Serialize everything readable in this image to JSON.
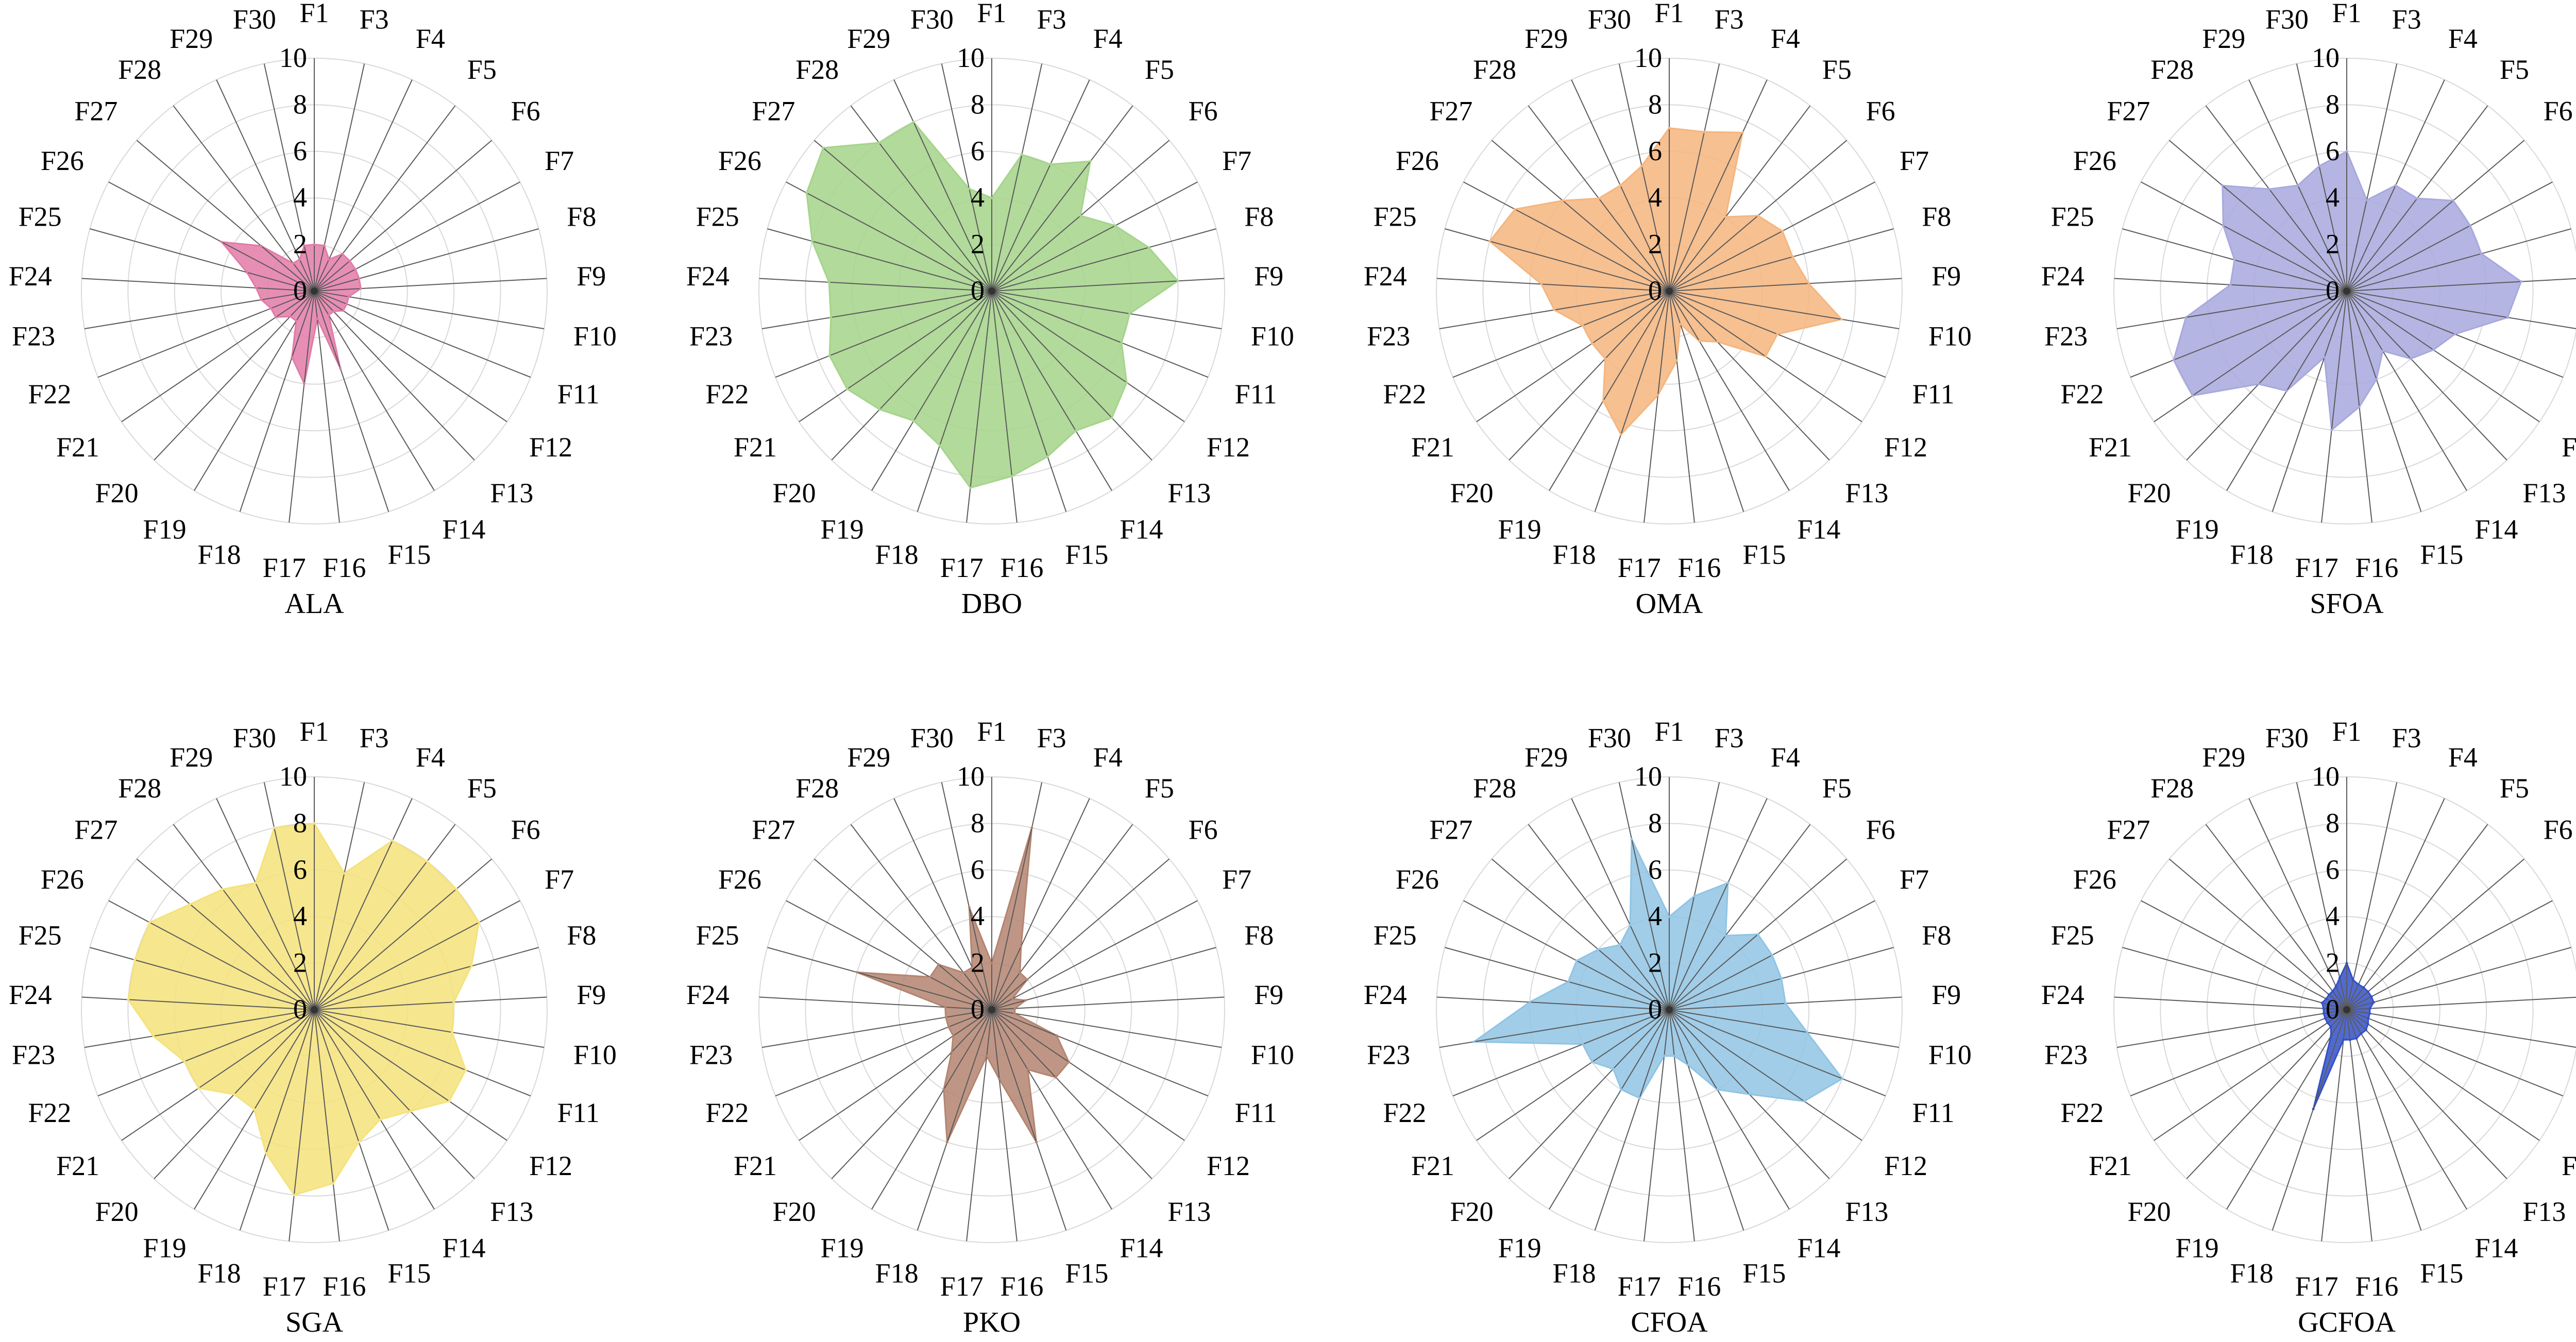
{
  "chart_data": {
    "type": "radar",
    "categories": [
      "F1",
      "F3",
      "F4",
      "F5",
      "F6",
      "F7",
      "F8",
      "F9",
      "F10",
      "F11",
      "F12",
      "F13",
      "F14",
      "F15",
      "F16",
      "F17",
      "F18",
      "F19",
      "F20",
      "F21",
      "F22",
      "F23",
      "F24",
      "F25",
      "F26",
      "F27",
      "F28",
      "F29",
      "F30"
    ],
    "radial_ticks": [
      "0",
      "2",
      "4",
      "6",
      "8",
      "10"
    ],
    "rlim": [
      0,
      10
    ],
    "grid": true,
    "charts": [
      {
        "title": "ALA",
        "color": "#e37aa8",
        "values": [
          2,
          2,
          1.5,
          2,
          2,
          2,
          2,
          2,
          1.5,
          1.5,
          1.5,
          1.2,
          1.2,
          3.5,
          1.2,
          4,
          3,
          1.5,
          1.5,
          2,
          2,
          2.3,
          2.5,
          3,
          4.5,
          3,
          1.5,
          1.5,
          2
        ]
      },
      {
        "title": "DBO",
        "color": "#a5d48a",
        "values": [
          4,
          6,
          6,
          7,
          5,
          6,
          7,
          8,
          6,
          6,
          7,
          7.5,
          7,
          7.5,
          8,
          8.5,
          7,
          6.5,
          7,
          7.5,
          7.5,
          7,
          7,
          8,
          9,
          9.5,
          8,
          8,
          4.5
        ]
      },
      {
        "title": "OMA",
        "color": "#f5b57e",
        "values": [
          7,
          7,
          7.5,
          4,
          5,
          5.5,
          5.5,
          6,
          7.5,
          5,
          5,
          3,
          2.5,
          1.5,
          3,
          4.5,
          6.5,
          5.5,
          4,
          4,
          4,
          5,
          5.5,
          8,
          7.5,
          6,
          5,
          5,
          5.5
        ]
      },
      {
        "title": "SFOA",
        "color": "#a8a8de",
        "values": [
          6,
          4,
          5,
          5,
          6,
          6,
          6,
          7.5,
          7,
          5,
          4.5,
          4,
          3,
          4,
          5,
          6,
          3,
          5,
          5.5,
          8,
          8,
          7,
          5,
          5,
          6,
          7,
          5.5,
          5,
          5.5
        ]
      },
      {
        "title": "SGA",
        "color": "#f5e27a",
        "values": [
          8,
          6,
          8,
          8,
          8,
          8,
          7,
          6,
          6,
          7,
          7,
          6,
          5.5,
          6,
          7.5,
          8,
          6.5,
          5,
          5,
          6,
          6,
          7,
          8,
          8,
          8,
          7,
          6.5,
          6,
          8
        ]
      },
      {
        "title": "PKO",
        "color": "#b48470",
        "values": [
          2,
          8,
          3,
          2,
          2,
          1,
          1.5,
          1,
          1,
          3,
          4,
          4,
          3,
          6,
          3,
          2,
          6,
          4,
          2.5,
          2,
          2,
          2,
          2,
          6,
          3,
          3,
          2,
          2,
          4.5
        ]
      },
      {
        "title": "CFOA",
        "color": "#90c4e4",
        "values": [
          4,
          5,
          6,
          4,
          5,
          5,
          5,
          5,
          6,
          8,
          7,
          5,
          4,
          2.5,
          2,
          2,
          4,
          4,
          3.5,
          4,
          4,
          8.5,
          6,
          4.5,
          4.5,
          4,
          3.5,
          4,
          7.5
        ]
      },
      {
        "title": "GCFOA",
        "color": "#3350c8",
        "values": [
          2,
          1.3,
          1.2,
          1.2,
          1.2,
          1.2,
          1.2,
          1,
          1,
          1,
          1.1,
          1.2,
          1.2,
          1.3,
          1.3,
          1.3,
          4.5,
          1.3,
          1,
          1,
          1,
          1,
          1,
          1.1,
          1,
          1,
          1,
          1.1,
          1.4
        ]
      }
    ]
  }
}
